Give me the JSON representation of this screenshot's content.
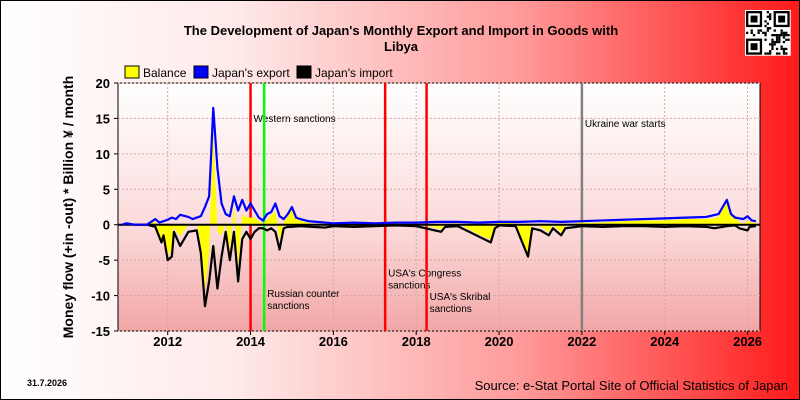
{
  "chart_data": {
    "type": "line",
    "title_line1": "The Development of Japan's Monthly Export and Import in Goods with",
    "title_line2": "Libya",
    "ylabel": "Money flow (+in -out) * Billion ¥ / month",
    "ylim": [
      -15,
      20
    ],
    "y_ticks": [
      "20",
      "15",
      "10",
      "5",
      "0",
      "-5",
      "-10",
      "-15"
    ],
    "y_tick_values": [
      20,
      15,
      10,
      5,
      0,
      -5,
      -10,
      -15
    ],
    "xlim": [
      2010.8,
      2026.3
    ],
    "x_ticks": [
      "2012",
      "2014",
      "2016",
      "2018",
      "2020",
      "2022",
      "2024",
      "2026"
    ],
    "x_tick_values": [
      2012,
      2014,
      2016,
      2018,
      2020,
      2022,
      2024,
      2026
    ],
    "legend": {
      "placement": "top-left",
      "items": [
        {
          "label": "Balance",
          "color": "#ffff00"
        },
        {
          "label": "Japan's export",
          "color": "#0000ff"
        },
        {
          "label": "Japan's import",
          "color": "#000000"
        }
      ]
    },
    "annotations": [
      {
        "x": 2014.0,
        "color": "#ff0000",
        "lines": [
          "Western sanctions"
        ],
        "label_y": 14.5
      },
      {
        "x": 2014.33,
        "color": "#00ff00",
        "lines": [
          "Russian counter",
          "sanctions"
        ],
        "label_y": -10.2
      },
      {
        "x": 2017.25,
        "color": "#ff0000",
        "lines": [
          "USA's Congress",
          "sanctions"
        ],
        "label_y": -7.3
      },
      {
        "x": 2018.25,
        "color": "#ff0000",
        "lines": [
          "USA's Skribal",
          "sanctions"
        ],
        "label_y": -10.6
      },
      {
        "x": 2022.0,
        "color": "#808080",
        "lines": [
          "Ukraine war starts"
        ],
        "label_y": 13.8
      }
    ],
    "series": [
      {
        "name": "Japan's export",
        "color": "#0000ff",
        "x": [
          2010.9,
          2011.0,
          2011.2,
          2011.5,
          2011.7,
          2011.8,
          2012.0,
          2012.1,
          2012.2,
          2012.3,
          2012.5,
          2012.6,
          2012.8,
          2012.9,
          2013.0,
          2013.05,
          2013.1,
          2013.2,
          2013.3,
          2013.4,
          2013.5,
          2013.6,
          2013.7,
          2013.8,
          2013.9,
          2014.0,
          2014.1,
          2014.2,
          2014.3,
          2014.4,
          2014.5,
          2014.6,
          2014.7,
          2014.8,
          2014.9,
          2015.0,
          2015.1,
          2015.2,
          2015.4,
          2015.6,
          2015.8,
          2016.0,
          2016.5,
          2017.0,
          2017.5,
          2018.0,
          2018.5,
          2019.0,
          2019.5,
          2020.0,
          2020.5,
          2021.0,
          2021.5,
          2022.0,
          2022.5,
          2023.0,
          2023.5,
          2024.0,
          2024.5,
          2025.0,
          2025.3,
          2025.5,
          2025.6,
          2025.7,
          2025.9,
          2026.0,
          2026.1,
          2026.2
        ],
        "values": [
          0,
          0.2,
          0,
          0,
          0.8,
          0.3,
          0.7,
          1.0,
          0.8,
          1.4,
          1.1,
          0.8,
          1.2,
          2.5,
          4.0,
          10.0,
          16.5,
          8.0,
          3.0,
          1.5,
          1.2,
          4.0,
          2.0,
          3.5,
          2.0,
          3.0,
          2.0,
          1.0,
          0.6,
          1.5,
          1.8,
          3.0,
          1.2,
          0.8,
          1.5,
          2.5,
          1.0,
          0.8,
          0.5,
          0.4,
          0.3,
          0.2,
          0.3,
          0.2,
          0.3,
          0.3,
          0.4,
          0.4,
          0.3,
          0.4,
          0.4,
          0.5,
          0.4,
          0.5,
          0.6,
          0.7,
          0.8,
          0.9,
          1.0,
          1.1,
          1.5,
          3.5,
          1.5,
          1.0,
          0.8,
          1.2,
          0.6,
          0.5
        ]
      },
      {
        "name": "Japan's import",
        "color": "#000000",
        "x": [
          2010.9,
          2011.0,
          2011.2,
          2011.5,
          2011.7,
          2011.85,
          2011.9,
          2012.0,
          2012.1,
          2012.15,
          2012.3,
          2012.5,
          2012.7,
          2012.8,
          2012.9,
          2013.0,
          2013.1,
          2013.2,
          2013.3,
          2013.4,
          2013.5,
          2013.6,
          2013.7,
          2013.8,
          2013.9,
          2014.0,
          2014.1,
          2014.2,
          2014.3,
          2014.4,
          2014.5,
          2014.6,
          2014.7,
          2014.8,
          2014.9,
          2015.0,
          2015.2,
          2015.5,
          2015.8,
          2016.0,
          2016.5,
          2017.0,
          2017.5,
          2018.0,
          2018.6,
          2018.7,
          2019.0,
          2019.8,
          2019.9,
          2020.0,
          2020.4,
          2020.7,
          2020.8,
          2021.0,
          2021.2,
          2021.3,
          2021.5,
          2021.6,
          2022.0,
          2022.5,
          2023.0,
          2023.5,
          2024.0,
          2024.5,
          2025.0,
          2025.2,
          2025.5,
          2025.7,
          2025.8,
          2026.0,
          2026.05,
          2026.2
        ],
        "values": [
          0,
          0.1,
          0,
          0,
          -0.3,
          -2.5,
          -1.5,
          -5.0,
          -4.5,
          -1.0,
          -3.0,
          -1.0,
          -0.8,
          -4.0,
          -11.5,
          -8.0,
          -3.0,
          -9.0,
          -4.5,
          -1.0,
          -5.0,
          -1.0,
          -8.0,
          -2.0,
          -1.0,
          -2.0,
          -1.0,
          -0.5,
          -0.5,
          -0.8,
          -0.5,
          -1.0,
          -3.5,
          -0.5,
          -0.3,
          -0.3,
          -0.2,
          -0.3,
          -0.4,
          -0.2,
          -0.3,
          -0.2,
          -0.1,
          -0.2,
          -1.0,
          -0.3,
          -0.2,
          -2.5,
          -0.5,
          -0.1,
          -0.2,
          -4.5,
          -0.5,
          -0.8,
          -1.5,
          -0.5,
          -1.5,
          -0.5,
          -0.2,
          -0.3,
          -0.2,
          -0.2,
          -0.3,
          -0.2,
          -0.3,
          -0.5,
          -0.2,
          -0.1,
          -0.5,
          -0.8,
          -0.3,
          -0.2
        ]
      }
    ],
    "balance_series": {
      "name": "Balance",
      "color": "#ffff00",
      "computed": "export + import"
    }
  },
  "footer": {
    "date": "31.7.2026",
    "source": "Source: e-Stat Portal Site of Official Statistics of Japan"
  },
  "qr": {
    "icon": "qr-code-icon"
  }
}
